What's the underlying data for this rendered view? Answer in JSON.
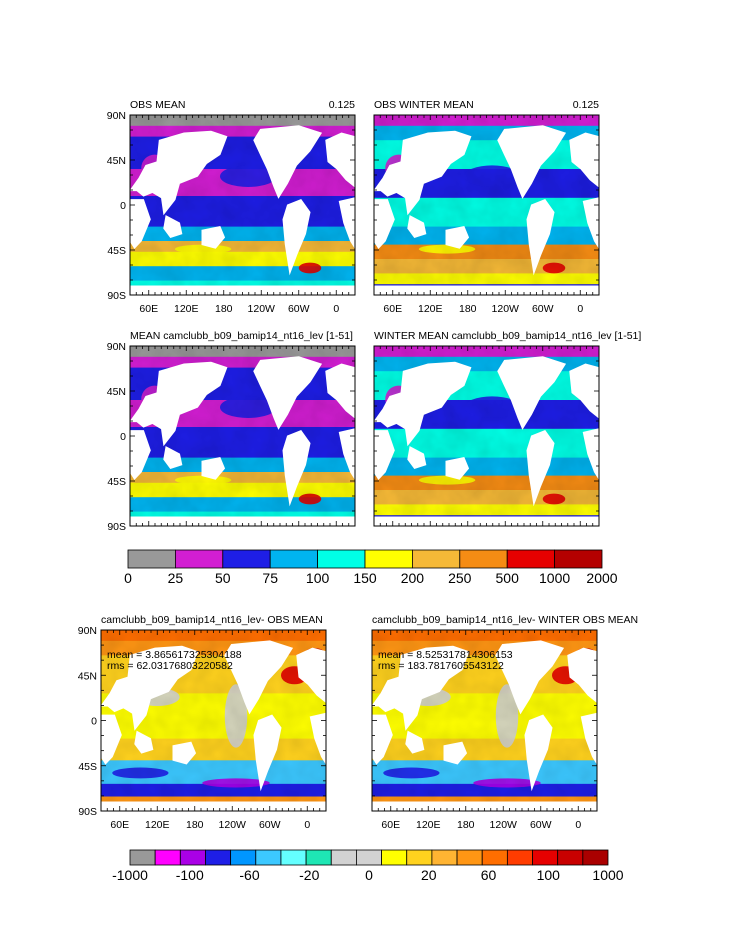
{
  "chart_data": [
    {
      "type": "heatmap",
      "title": "OBS MEAN",
      "corner_label": "0.125",
      "yticks": [
        "90N",
        "45N",
        "0",
        "45S",
        "90S"
      ],
      "xticks": [
        "60E",
        "120E",
        "180",
        "120W",
        "60W",
        "0"
      ],
      "colorbar": "cb1"
    },
    {
      "type": "heatmap",
      "title": "OBS WINTER MEAN",
      "corner_label": "0.125",
      "yticks": [],
      "xticks": [
        "60E",
        "120E",
        "180",
        "120W",
        "60W",
        "0"
      ],
      "colorbar": "cb1"
    },
    {
      "type": "heatmap",
      "title": "MEAN camclubb_b09_bamip14_nt16_lev [1-51]",
      "corner_label": "",
      "yticks": [
        "90N",
        "45N",
        "0",
        "45S",
        "90S"
      ],
      "xticks": [],
      "colorbar": "cb1"
    },
    {
      "type": "heatmap",
      "title": "WINTER MEAN camclubb_b09_bamip14_nt16_lev [1-51]",
      "corner_label": "",
      "yticks": [],
      "xticks": [],
      "colorbar": "cb1"
    },
    {
      "type": "heatmap",
      "title": "camclubb_b09_bamip14_nt16_lev- OBS MEAN",
      "corner_label": "",
      "stats": [
        "mean = 3.865617325304188",
        "rms = 62.03176803220582"
      ],
      "yticks": [
        "90N",
        "45N",
        "0",
        "45S",
        "90S"
      ],
      "xticks": [
        "60E",
        "120E",
        "180",
        "120W",
        "60W",
        "0"
      ],
      "colorbar": "cb2"
    },
    {
      "type": "heatmap",
      "title": "camclubb_b09_bamip14_nt16_lev- WINTER OBS MEAN",
      "corner_label": "",
      "stats": [
        "mean = 8.525317814306153",
        "rms = 183.7817605543122"
      ],
      "yticks": [],
      "xticks": [
        "60E",
        "120E",
        "180",
        "120W",
        "60W",
        "0"
      ],
      "colorbar": "cb2"
    }
  ],
  "colorbars": {
    "cb1": {
      "colors": [
        "#999999",
        "#d21ed2",
        "#1e1ee6",
        "#00b4f0",
        "#00ffe6",
        "#ffff00",
        "#f5b937",
        "#f58c14",
        "#e60000",
        "#b40000"
      ],
      "labels": [
        "0",
        "25",
        "50",
        "75",
        "100",
        "150",
        "200",
        "250",
        "500",
        "1000",
        "2000"
      ]
    },
    "cb2": {
      "colors": [
        "#999999",
        "#ff00ff",
        "#aa00e6",
        "#1e1ee6",
        "#0096ff",
        "#3cc8ff",
        "#64ffff",
        "#1ee6b4",
        "#d2d2d2",
        "#d2d2d2",
        "#ffff00",
        "#ffd21e",
        "#ffb432",
        "#ff9614",
        "#ff6e00",
        "#ff3c00",
        "#e60000",
        "#c80000",
        "#aa0000"
      ],
      "labels": [
        "-1000",
        "-100",
        "-60",
        "-20",
        "0",
        "20",
        "60",
        "100",
        "1000"
      ]
    }
  }
}
